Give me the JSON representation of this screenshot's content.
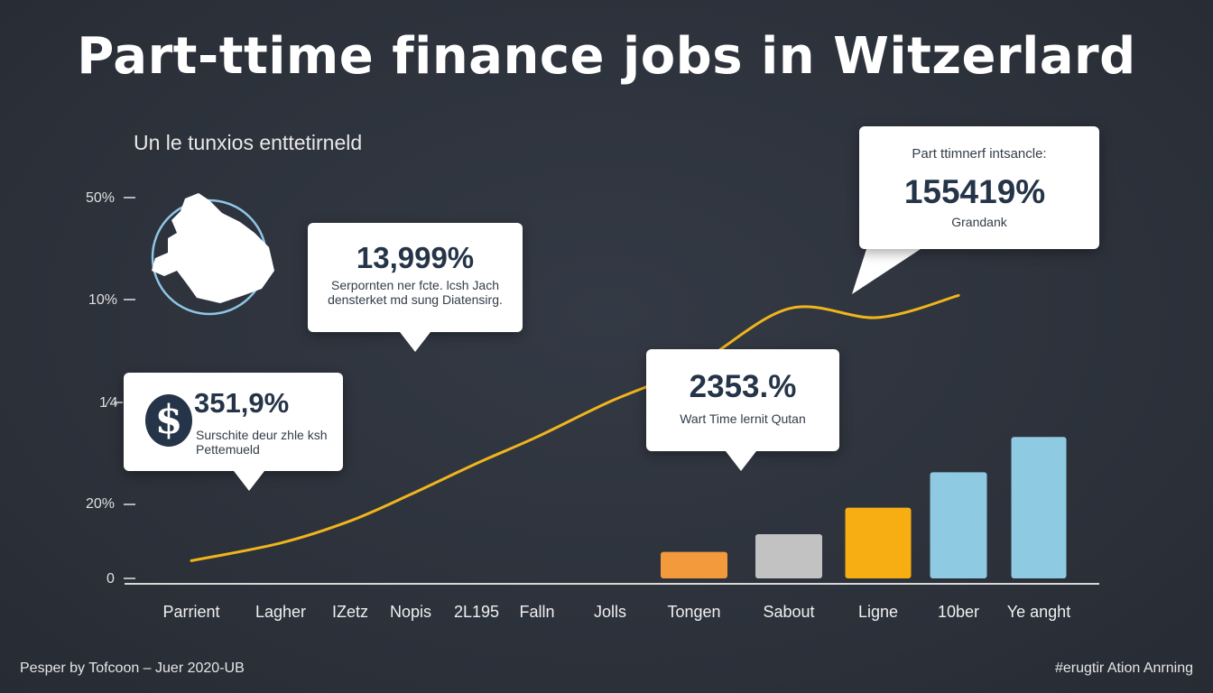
{
  "title": "Part-ttime finance jobs in Witzerlard",
  "subtitle": "Un le tunxios enttetirneld",
  "footer_left": "Pesper by Tofcoon – Juer 2020-UB",
  "footer_right": "#erugtir Ation Anrning",
  "y_axis_ticks": [
    "50%",
    "10%",
    "1⁄4",
    "20%",
    "0"
  ],
  "callouts": {
    "c1": {
      "value": "351,9%",
      "text_line1": "Surschite deur zhle ksh",
      "text_line2": "Pettemueld",
      "icon": "dollar-icon"
    },
    "c2": {
      "value": "13,999%",
      "text_line1": "Serpornten ner fcte. lcsh Jach",
      "text_line2": "densterket md sung Diatensirg."
    },
    "c3": {
      "value": "2353.%",
      "text_line1": "Wart Time lernit Qutan"
    },
    "c4": {
      "header": "Part ttimnerf intsancle:",
      "value": "155419%",
      "text_line1": "Grandank"
    }
  },
  "colors": {
    "background": "#2e3440",
    "line": "#f1b51c",
    "bar_orange": "#f39a3c",
    "bar_gray": "#c2c2c2",
    "bar_yellow": "#f6ae13",
    "bar_blue": "#8ecae2"
  },
  "chart_data": {
    "type": "line+bar",
    "categories": [
      "Parrient",
      "Lagher",
      "IZetz",
      "Nopis",
      "2L195",
      "Falln",
      "Jolls",
      "Tongen",
      "Sabout",
      "Ligne",
      "10ber",
      "Ye anght"
    ],
    "y_tick_labels": [
      "50%",
      "10%",
      "1⁄4",
      "20%",
      "0"
    ],
    "series": [
      {
        "type": "line",
        "values": [
          2,
          4,
          6.5,
          9.5,
          13,
          16,
          20,
          24,
          30.5,
          29.5,
          32,
          null
        ]
      },
      {
        "type": "bar",
        "values": [
          null,
          null,
          null,
          null,
          null,
          null,
          null,
          3,
          5,
          8,
          12,
          16
        ]
      }
    ],
    "ylim": [
      0,
      45
    ],
    "grid": false,
    "legend": "none"
  }
}
